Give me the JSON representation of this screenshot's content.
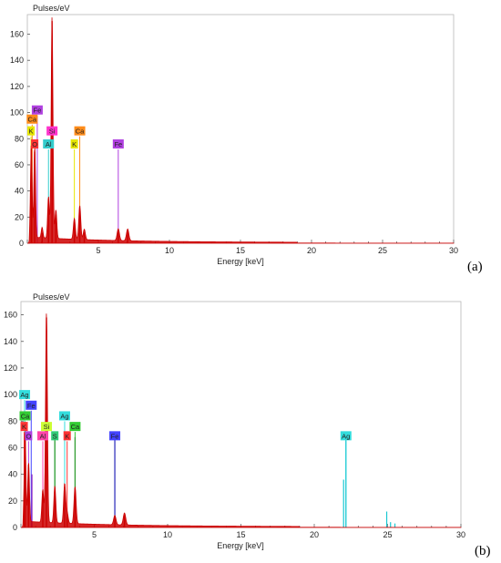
{
  "colors": {
    "spectrum_a": "#cc0000",
    "spectrum_b": "#cc0000",
    "overlay_cyan": "#19c8d2",
    "overlay_green": "#2e9b2e",
    "overlay_blue": "#2a2ab8",
    "overlay_purple": "#9a30c0"
  },
  "chart_data": [
    {
      "type": "line",
      "panel_label": "(a)",
      "ylabel": "Pulses/eV",
      "xlabel": "Energy [keV]",
      "xlim": [
        0,
        30
      ],
      "ylim": [
        0,
        175
      ],
      "xticks": [
        0,
        5,
        10,
        15,
        20,
        25,
        30
      ],
      "yticks": [
        0,
        20,
        40,
        60,
        80,
        100,
        120,
        140,
        160
      ],
      "xtick_labels": [
        "5",
        "10",
        "15",
        "20",
        "25",
        "30"
      ],
      "ytick_labels": [
        "0",
        "20",
        "40",
        "60",
        "80",
        "100",
        "120",
        "140",
        "160"
      ],
      "spectrum_peaks": [
        {
          "x": 0.28,
          "y": 72
        },
        {
          "x": 0.52,
          "y": 70
        },
        {
          "x": 1.04,
          "y": 8
        },
        {
          "x": 1.49,
          "y": 32
        },
        {
          "x": 1.74,
          "y": 170
        },
        {
          "x": 2.01,
          "y": 22
        },
        {
          "x": 3.31,
          "y": 16
        },
        {
          "x": 3.69,
          "y": 26
        },
        {
          "x": 4.01,
          "y": 8
        },
        {
          "x": 6.4,
          "y": 9
        },
        {
          "x": 7.06,
          "y": 9
        }
      ],
      "element_lines": [
        {
          "label": "Ca",
          "x": 0.34,
          "y": 95,
          "color": "#ff8c1a"
        },
        {
          "label": "Fe",
          "x": 0.7,
          "y": 102,
          "color": "#b040e0"
        },
        {
          "label": "K",
          "x": 0.26,
          "y": 86,
          "color": "#e6e600"
        },
        {
          "label": "O",
          "x": 0.52,
          "y": 76,
          "color": "#ff3333"
        },
        {
          "label": "Al",
          "x": 1.49,
          "y": 76,
          "color": "#33cccc"
        },
        {
          "label": "Si",
          "x": 1.74,
          "y": 86,
          "color": "#ff33cc"
        },
        {
          "label": "K",
          "x": 3.31,
          "y": 76,
          "color": "#e6e600"
        },
        {
          "label": "Ca",
          "x": 3.69,
          "y": 86,
          "color": "#ff8c1a"
        },
        {
          "label": "Fe",
          "x": 6.4,
          "y": 76,
          "color": "#b040e0"
        }
      ]
    },
    {
      "type": "line",
      "panel_label": "(b)",
      "ylabel": "Pulses/eV",
      "xlabel": "Energy [keV]",
      "xlim": [
        0,
        30
      ],
      "ylim": [
        0,
        170
      ],
      "xticks": [
        0,
        5,
        10,
        15,
        20,
        25,
        30
      ],
      "yticks": [
        0,
        20,
        40,
        60,
        80,
        100,
        120,
        140,
        160
      ],
      "xtick_labels": [
        "5",
        "10",
        "15",
        "20",
        "25",
        "30"
      ],
      "ytick_labels": [
        "0",
        "20",
        "40",
        "60",
        "80",
        "100",
        "120",
        "140",
        "160"
      ],
      "spectrum_peaks": [
        {
          "x": 0.28,
          "y": 68
        },
        {
          "x": 0.52,
          "y": 45
        },
        {
          "x": 1.49,
          "y": 25
        },
        {
          "x": 1.74,
          "y": 158
        },
        {
          "x": 2.31,
          "y": 28
        },
        {
          "x": 2.98,
          "y": 30
        },
        {
          "x": 3.15,
          "y": 8
        },
        {
          "x": 3.69,
          "y": 28
        },
        {
          "x": 6.4,
          "y": 7
        },
        {
          "x": 7.06,
          "y": 9
        }
      ],
      "overlay_peaks": [
        {
          "x": 0.28,
          "y": 70,
          "series": "green"
        },
        {
          "x": 0.52,
          "y": 22,
          "series": "green"
        },
        {
          "x": 0.75,
          "y": 40,
          "series": "purple"
        },
        {
          "x": 2.31,
          "y": 68,
          "series": "green"
        },
        {
          "x": 2.98,
          "y": 28,
          "series": "cyan"
        },
        {
          "x": 3.69,
          "y": 68,
          "series": "green"
        },
        {
          "x": 6.4,
          "y": 68,
          "series": "blue"
        },
        {
          "x": 22.0,
          "y": 36,
          "series": "cyan"
        },
        {
          "x": 22.16,
          "y": 68,
          "series": "cyan"
        },
        {
          "x": 24.94,
          "y": 12,
          "series": "cyan"
        },
        {
          "x": 25.2,
          "y": 4,
          "series": "cyan"
        },
        {
          "x": 25.5,
          "y": 3,
          "series": "cyan"
        }
      ],
      "element_lines": [
        {
          "label": "Ag",
          "x": 0.25,
          "y": 100,
          "color": "#33dddd"
        },
        {
          "label": "Fe",
          "x": 0.7,
          "y": 92,
          "color": "#4444ff"
        },
        {
          "label": "Ca",
          "x": 0.28,
          "y": 84,
          "color": "#33cc33"
        },
        {
          "label": "K",
          "x": 0.22,
          "y": 76,
          "color": "#ff3333"
        },
        {
          "label": "O",
          "x": 0.52,
          "y": 69,
          "color": "#b040e0"
        },
        {
          "label": "Al",
          "x": 1.49,
          "y": 69,
          "color": "#ff44aa"
        },
        {
          "label": "Si",
          "x": 1.74,
          "y": 76,
          "color": "#ccff33"
        },
        {
          "label": "S",
          "x": 2.31,
          "y": 69,
          "color": "#33cc77"
        },
        {
          "label": "K",
          "x": 3.15,
          "y": 69,
          "color": "#ff3333"
        },
        {
          "label": "Ag",
          "x": 2.98,
          "y": 84,
          "color": "#33dddd"
        },
        {
          "label": "Ca",
          "x": 3.69,
          "y": 76,
          "color": "#33cc33"
        },
        {
          "label": "Fe",
          "x": 6.4,
          "y": 69,
          "color": "#4444ff"
        },
        {
          "label": "Ag",
          "x": 22.16,
          "y": 69,
          "color": "#33dddd"
        }
      ]
    }
  ]
}
